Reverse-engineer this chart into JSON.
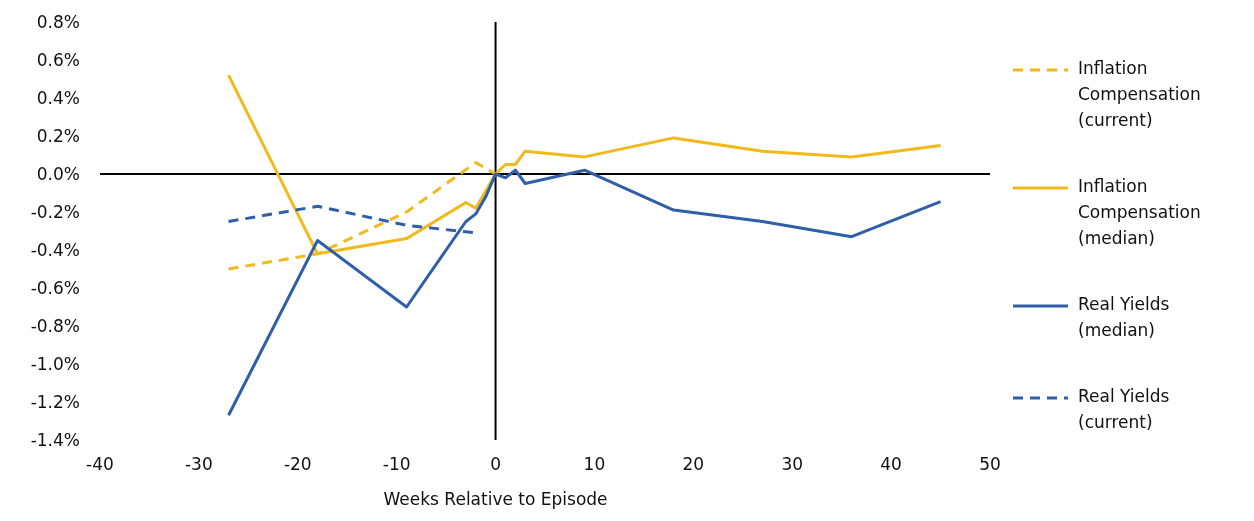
{
  "chart_data": {
    "type": "line",
    "xlabel": "Weeks Relative to Episode",
    "xlim": [
      -40,
      50
    ],
    "xticks": [
      -40,
      -30,
      -20,
      -10,
      0,
      10,
      20,
      30,
      40,
      50
    ],
    "ylim": [
      -1.4,
      0.8
    ],
    "yticks": [
      {
        "value": -1.4,
        "label": "-1.4%"
      },
      {
        "value": -1.2,
        "label": "-1.2%"
      },
      {
        "value": -1.0,
        "label": "-1.0%"
      },
      {
        "value": -0.8,
        "label": "-0.8%"
      },
      {
        "value": -0.6,
        "label": "-0.6%"
      },
      {
        "value": -0.4,
        "label": "-0.4%"
      },
      {
        "value": -0.2,
        "label": "-0.2%"
      },
      {
        "value": 0.0,
        "label": "0.0%"
      },
      {
        "value": 0.2,
        "label": "0.2%"
      },
      {
        "value": 0.4,
        "label": "0.4%"
      },
      {
        "value": 0.6,
        "label": "0.6%"
      },
      {
        "value": 0.8,
        "label": "0.8%"
      }
    ],
    "legend": "right",
    "marker": "none",
    "series": [
      {
        "name": "Inflation Compensation (current)",
        "color": "#f2b91c",
        "line_style": "dashed",
        "x": [
          -27,
          -18,
          -9,
          -2,
          0
        ],
        "values": [
          -0.5,
          -0.42,
          -0.2,
          0.06,
          0
        ]
      },
      {
        "name": "Inflation Compensation (median)",
        "color": "#f2b91c",
        "line_style": "solid",
        "x": [
          -27,
          -18,
          -9,
          -3,
          -2,
          0,
          1,
          2,
          3,
          9,
          18,
          27,
          36,
          45
        ],
        "values": [
          0.52,
          -0.42,
          -0.34,
          -0.15,
          -0.18,
          0,
          0.05,
          0.05,
          0.12,
          0.09,
          0.19,
          0.12,
          0.09,
          0.15
        ]
      },
      {
        "name": "Real Yields (median)",
        "color": "#2e5fa8",
        "line_style": "solid",
        "x": [
          -27,
          -18,
          -9,
          -3,
          -2,
          -1,
          0,
          1,
          2,
          3,
          9,
          18,
          27,
          36,
          45
        ],
        "values": [
          -1.27,
          -0.35,
          -0.7,
          -0.25,
          -0.21,
          -0.12,
          0,
          -0.02,
          0.02,
          -0.05,
          0.02,
          -0.19,
          -0.25,
          -0.33,
          -0.145
        ]
      },
      {
        "name": "Real Yields (current)",
        "color": "#2e5fa8",
        "line_style": "dashed",
        "x": [
          -27,
          -18,
          -9,
          -2
        ],
        "values": [
          -0.25,
          -0.17,
          -0.27,
          -0.31
        ]
      }
    ]
  }
}
